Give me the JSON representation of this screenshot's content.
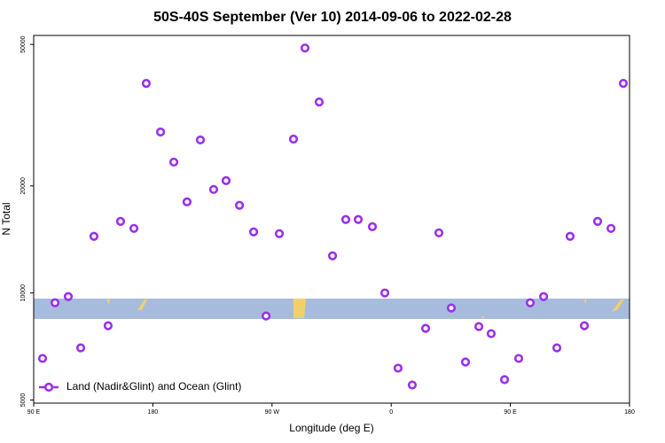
{
  "chart_data": {
    "type": "scatter",
    "title": "50S-40S September (Ver 10)   2014-09-06 to 2022-02-28",
    "xlabel": "Longitude (deg E)",
    "ylabel": "N Total",
    "log_y": true,
    "legend_position": "lower left",
    "xlim": [
      90,
      540
    ],
    "ylim": [
      4900,
      53000
    ],
    "xticks": [
      {
        "value": 90,
        "label": "90 E"
      },
      {
        "value": 180,
        "label": "180"
      },
      {
        "value": 270,
        "label": "90 W"
      },
      {
        "value": 360,
        "label": "0"
      },
      {
        "value": 450,
        "label": "90 E"
      },
      {
        "value": 540,
        "label": "180"
      }
    ],
    "yticks": [
      5000,
      10000,
      20000,
      50000
    ],
    "series": [
      {
        "name": "Land (Nadir&Glint) and Ocean (Glint)",
        "color": "#9b30e8",
        "x": [
          96.7,
          106.1,
          116.1,
          125.5,
          135.5,
          146.2,
          155.6,
          165.7,
          175.0,
          185.8,
          195.8,
          205.8,
          215.9,
          225.9,
          235.3,
          245.4,
          256.1,
          265.5,
          275.5,
          286.2,
          294.9,
          305.6,
          315.7,
          325.7,
          335.1,
          345.8,
          355.2,
          365.2,
          375.9,
          386.0,
          396.0,
          405.4,
          416.1,
          426.2,
          435.5,
          445.6,
          456.3,
          465.0,
          475.1,
          485.1,
          495.1,
          505.9,
          515.9,
          526.0,
          535.3
        ],
        "values": [
          6545,
          9386,
          9770,
          7010,
          14430,
          8090,
          15900,
          15190,
          38850,
          28360,
          23340,
          18040,
          26940,
          19550,
          20700,
          17640,
          14850,
          8615,
          14680,
          27090,
          48860,
          34450,
          12720,
          16090,
          16090,
          15360,
          10000,
          6145,
          5510,
          7950,
          14760,
          9075,
          6395,
          8045,
          7685,
          5705,
          6545,
          9386,
          9770,
          7010,
          14430,
          8090,
          15900,
          15190,
          38850
        ]
      }
    ]
  }
}
